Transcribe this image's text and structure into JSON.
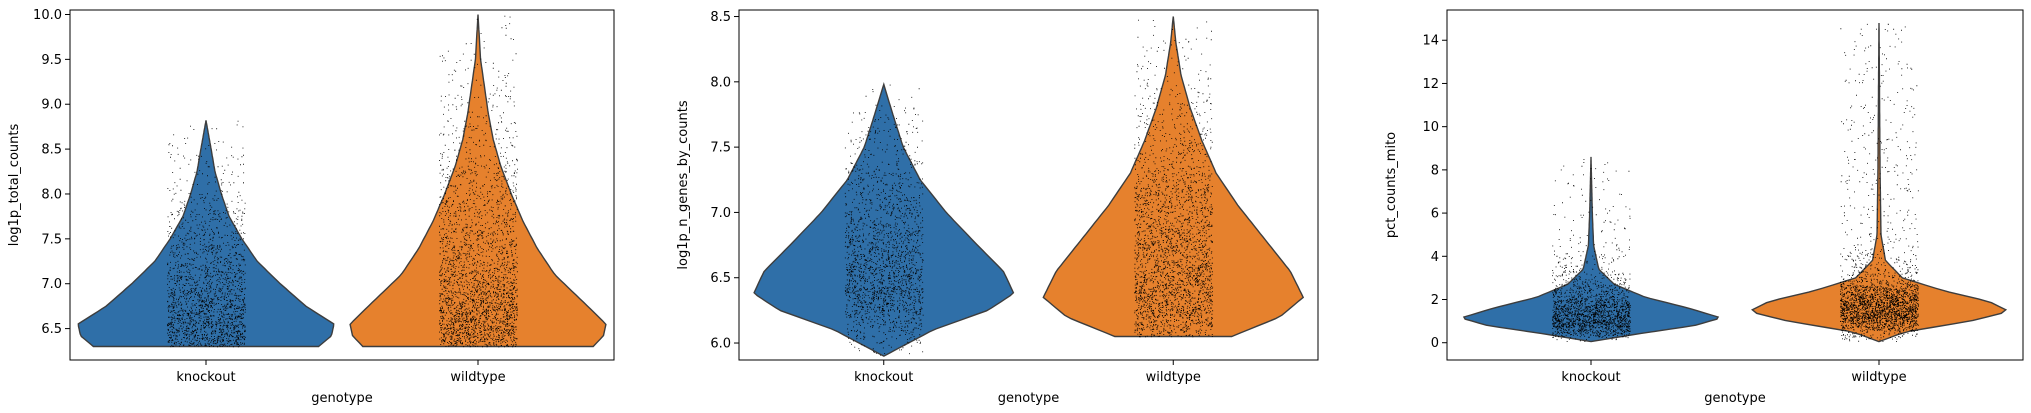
{
  "chart_data": [
    {
      "type": "violin",
      "xlabel": "genotype",
      "ylabel": "log1p_total_counts",
      "categories": [
        "knockout",
        "wildtype"
      ],
      "ylim": [
        6.15,
        10.05
      ],
      "yticks": [
        6.5,
        7.0,
        7.5,
        8.0,
        8.5,
        9.0,
        9.5,
        10.0
      ],
      "ytick_labels": [
        "6.5",
        "7.0",
        "7.5",
        "8.0",
        "8.5",
        "9.0",
        "9.5",
        "10.0"
      ],
      "grid": false,
      "series": [
        {
          "category": "knockout",
          "color": "#2f6fa8",
          "min": 6.3,
          "max": 8.82,
          "profile": [
            [
              6.3,
              0.88
            ],
            [
              6.42,
              0.98
            ],
            [
              6.55,
              1.0
            ],
            [
              6.75,
              0.78
            ],
            [
              7.0,
              0.58
            ],
            [
              7.25,
              0.4
            ],
            [
              7.5,
              0.28
            ],
            [
              7.75,
              0.18
            ],
            [
              8.0,
              0.12
            ],
            [
              8.25,
              0.07
            ],
            [
              8.5,
              0.04
            ],
            [
              8.82,
              0.0
            ]
          ]
        },
        {
          "category": "wildtype",
          "color": "#e6812d",
          "min": 6.3,
          "max": 10.0,
          "profile": [
            [
              6.3,
              0.9
            ],
            [
              6.42,
              0.98
            ],
            [
              6.55,
              1.0
            ],
            [
              6.8,
              0.82
            ],
            [
              7.1,
              0.6
            ],
            [
              7.4,
              0.46
            ],
            [
              7.7,
              0.35
            ],
            [
              8.0,
              0.26
            ],
            [
              8.3,
              0.18
            ],
            [
              8.6,
              0.12
            ],
            [
              8.9,
              0.08
            ],
            [
              9.2,
              0.05
            ],
            [
              9.5,
              0.02
            ],
            [
              10.0,
              0.0
            ]
          ]
        }
      ]
    },
    {
      "type": "violin",
      "xlabel": "genotype",
      "ylabel": "log1p_n_genes_by_counts",
      "categories": [
        "knockout",
        "wildtype"
      ],
      "ylim": [
        5.87,
        8.55
      ],
      "yticks": [
        6.0,
        6.5,
        7.0,
        7.5,
        8.0,
        8.5
      ],
      "ytick_labels": [
        "6.0",
        "6.5",
        "7.0",
        "7.5",
        "8.0",
        "8.5"
      ],
      "grid": false,
      "series": [
        {
          "category": "knockout",
          "color": "#2f6fa8",
          "min": 5.9,
          "max": 7.98,
          "profile": [
            [
              5.9,
              0.0
            ],
            [
              6.1,
              0.38
            ],
            [
              6.25,
              0.8
            ],
            [
              6.38,
              1.0
            ],
            [
              6.55,
              0.92
            ],
            [
              6.75,
              0.72
            ],
            [
              7.0,
              0.48
            ],
            [
              7.25,
              0.28
            ],
            [
              7.5,
              0.15
            ],
            [
              7.75,
              0.07
            ],
            [
              7.98,
              0.0
            ]
          ]
        },
        {
          "category": "wildtype",
          "color": "#e6812d",
          "min": 6.05,
          "max": 8.5,
          "profile": [
            [
              6.05,
              0.45
            ],
            [
              6.2,
              0.82
            ],
            [
              6.35,
              1.0
            ],
            [
              6.55,
              0.9
            ],
            [
              6.8,
              0.7
            ],
            [
              7.05,
              0.5
            ],
            [
              7.3,
              0.33
            ],
            [
              7.55,
              0.22
            ],
            [
              7.8,
              0.13
            ],
            [
              8.05,
              0.06
            ],
            [
              8.3,
              0.02
            ],
            [
              8.5,
              0.0
            ]
          ]
        }
      ]
    },
    {
      "type": "violin",
      "xlabel": "genotype",
      "ylabel": "pct_counts_mito",
      "categories": [
        "knockout",
        "wildtype"
      ],
      "ylim": [
        -0.8,
        15.4
      ],
      "yticks": [
        0,
        2,
        4,
        6,
        8,
        10,
        12,
        14
      ],
      "ytick_labels": [
        "0",
        "2",
        "4",
        "6",
        "8",
        "10",
        "12",
        "14"
      ],
      "grid": false,
      "series": [
        {
          "category": "knockout",
          "color": "#2f6fa8",
          "min": 0.05,
          "max": 8.6,
          "profile": [
            [
              0.05,
              0.0
            ],
            [
              0.4,
              0.35
            ],
            [
              0.8,
              0.8
            ],
            [
              1.15,
              1.0
            ],
            [
              1.6,
              0.75
            ],
            [
              2.1,
              0.42
            ],
            [
              2.7,
              0.18
            ],
            [
              3.4,
              0.06
            ],
            [
              4.5,
              0.02
            ],
            [
              6.0,
              0.01
            ],
            [
              8.6,
              0.0
            ]
          ]
        },
        {
          "category": "wildtype",
          "color": "#e6812d",
          "min": 0.05,
          "max": 14.8,
          "profile": [
            [
              0.05,
              0.0
            ],
            [
              0.5,
              0.2
            ],
            [
              1.0,
              0.7
            ],
            [
              1.45,
              1.0
            ],
            [
              1.9,
              0.85
            ],
            [
              2.4,
              0.5
            ],
            [
              3.0,
              0.18
            ],
            [
              3.8,
              0.05
            ],
            [
              5.0,
              0.015
            ],
            [
              8.0,
              0.008
            ],
            [
              14.8,
              0.0
            ]
          ]
        }
      ]
    }
  ]
}
